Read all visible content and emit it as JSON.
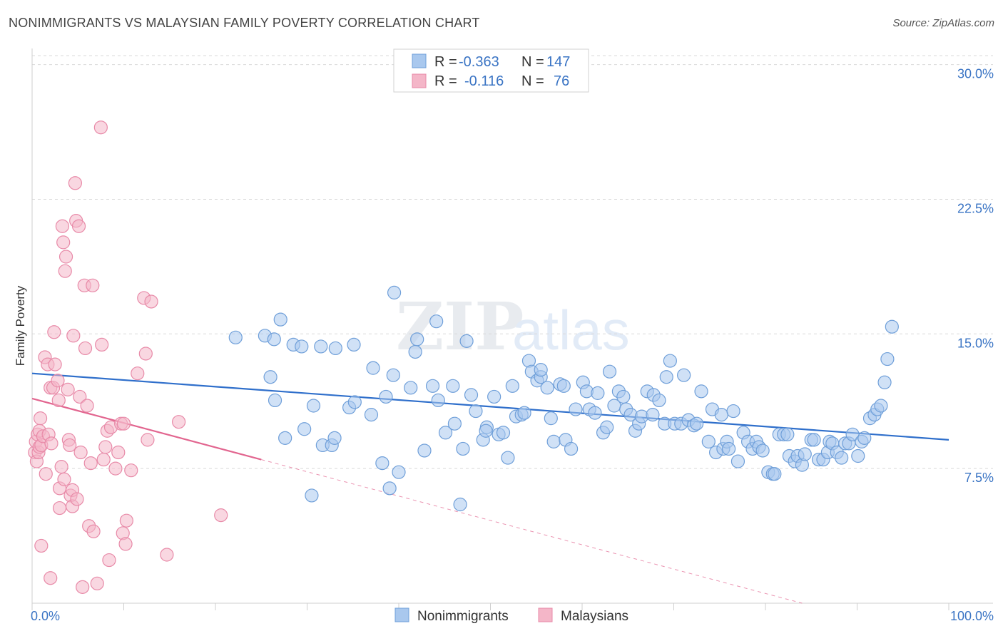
{
  "title": "NONIMMIGRANTS VS MALAYSIAN FAMILY POVERTY CORRELATION CHART",
  "source": "Source: ZipAtlas.com",
  "watermark": {
    "zip": "ZIP",
    "atlas": "atlas"
  },
  "colors": {
    "blue_fill": "#a9c8ee",
    "blue_stroke": "#6f9fd9",
    "blue_line": "#2f6fcb",
    "pink_fill": "#f4b6c8",
    "pink_stroke": "#e88aa8",
    "pink_line": "#e2658f",
    "grid": "#d9d9d9",
    "axis_text": "#3a74c4"
  },
  "legend": {
    "rows": [
      {
        "r_label": "R =",
        "r_value": "-0.363",
        "n_label": "N =",
        "n_value": "147"
      },
      {
        "r_label": "R =",
        "r_value": "-0.116",
        "n_label": "N =",
        "n_value": "76"
      }
    ]
  },
  "bottom_legend": [
    "Nonimmigrants",
    "Malaysians"
  ],
  "chart_data": {
    "type": "scatter",
    "title": "NONIMMIGRANTS VS MALAYSIAN FAMILY POVERTY CORRELATION CHART",
    "xlabel": "",
    "ylabel": "Family Poverty",
    "xlim": [
      0,
      100
    ],
    "ylim": [
      0,
      30.5
    ],
    "x_tick_labels": [
      "0.0%",
      "100.0%"
    ],
    "y_ticks": [
      7.5,
      15.0,
      22.5,
      30.0
    ],
    "y_tick_labels": [
      "7.5%",
      "15.0%",
      "22.5%",
      "30.0%"
    ],
    "grid": "horizontal dashed",
    "legend_position": "top-center",
    "series": [
      {
        "name": "Nonimmigrants",
        "r": -0.363,
        "n": 147,
        "trend": {
          "x": [
            0,
            100
          ],
          "y": [
            12.8,
            9.1
          ]
        },
        "points": [
          [
            22.2,
            14.8
          ],
          [
            25.4,
            14.9
          ],
          [
            26.0,
            12.6
          ],
          [
            26.4,
            14.7
          ],
          [
            26.5,
            11.3
          ],
          [
            27.1,
            15.8
          ],
          [
            27.6,
            9.2
          ],
          [
            28.5,
            14.4
          ],
          [
            29.4,
            14.3
          ],
          [
            29.7,
            9.7
          ],
          [
            30.5,
            6.0
          ],
          [
            30.7,
            11.0
          ],
          [
            31.5,
            14.3
          ],
          [
            33.1,
            14.2
          ],
          [
            31.7,
            8.8
          ],
          [
            32.7,
            8.8
          ],
          [
            33.0,
            9.2
          ],
          [
            35.1,
            14.4
          ],
          [
            34.6,
            10.9
          ],
          [
            35.2,
            11.2
          ],
          [
            37.0,
            10.5
          ],
          [
            37.2,
            13.1
          ],
          [
            38.2,
            7.8
          ],
          [
            38.6,
            11.5
          ],
          [
            39.5,
            17.3
          ],
          [
            39.0,
            6.4
          ],
          [
            39.4,
            12.7
          ],
          [
            40.0,
            7.3
          ],
          [
            41.3,
            12.0
          ],
          [
            41.8,
            14.0
          ],
          [
            42.0,
            14.7
          ],
          [
            42.8,
            8.5
          ],
          [
            43.7,
            12.1
          ],
          [
            44.1,
            15.7
          ],
          [
            44.3,
            11.3
          ],
          [
            45.1,
            9.5
          ],
          [
            45.9,
            12.1
          ],
          [
            46.1,
            10.0
          ],
          [
            46.7,
            5.5
          ],
          [
            47.0,
            8.6
          ],
          [
            47.4,
            14.6
          ],
          [
            47.9,
            11.6
          ],
          [
            48.4,
            10.7
          ],
          [
            49.2,
            9.1
          ],
          [
            49.6,
            9.8
          ],
          [
            49.5,
            9.6
          ],
          [
            50.4,
            11.5
          ],
          [
            50.9,
            9.4
          ],
          [
            51.4,
            9.5
          ],
          [
            51.9,
            8.1
          ],
          [
            52.4,
            12.1
          ],
          [
            52.8,
            10.4
          ],
          [
            53.4,
            10.5
          ],
          [
            53.7,
            10.6
          ],
          [
            54.2,
            13.5
          ],
          [
            54.5,
            12.9
          ],
          [
            55.1,
            12.4
          ],
          [
            55.5,
            12.6
          ],
          [
            55.5,
            13.0
          ],
          [
            56.2,
            12.0
          ],
          [
            56.6,
            10.3
          ],
          [
            56.9,
            9.0
          ],
          [
            57.6,
            12.2
          ],
          [
            58.0,
            12.1
          ],
          [
            58.2,
            9.1
          ],
          [
            58.8,
            8.6
          ],
          [
            59.3,
            10.8
          ],
          [
            60.1,
            12.3
          ],
          [
            60.5,
            11.8
          ],
          [
            60.8,
            10.8
          ],
          [
            61.4,
            10.6
          ],
          [
            61.7,
            11.7
          ],
          [
            62.3,
            9.5
          ],
          [
            62.7,
            9.8
          ],
          [
            63.0,
            12.9
          ],
          [
            63.5,
            11.0
          ],
          [
            64.0,
            11.8
          ],
          [
            64.5,
            11.5
          ],
          [
            64.8,
            10.8
          ],
          [
            65.3,
            10.5
          ],
          [
            65.8,
            9.6
          ],
          [
            66.2,
            10.0
          ],
          [
            66.5,
            10.4
          ],
          [
            67.1,
            11.8
          ],
          [
            67.7,
            10.5
          ],
          [
            67.8,
            11.6
          ],
          [
            68.4,
            11.3
          ],
          [
            69.0,
            10.0
          ],
          [
            69.2,
            12.6
          ],
          [
            69.6,
            13.5
          ],
          [
            70.1,
            10.0
          ],
          [
            70.8,
            10.0
          ],
          [
            71.1,
            12.7
          ],
          [
            71.6,
            10.2
          ],
          [
            72.2,
            9.9
          ],
          [
            72.5,
            10.0
          ],
          [
            73.0,
            11.8
          ],
          [
            73.8,
            9.0
          ],
          [
            74.2,
            10.8
          ],
          [
            74.6,
            8.4
          ],
          [
            75.2,
            10.5
          ],
          [
            75.4,
            8.6
          ],
          [
            75.8,
            9.0
          ],
          [
            76.0,
            8.6
          ],
          [
            76.5,
            10.7
          ],
          [
            77.0,
            7.9
          ],
          [
            77.6,
            9.5
          ],
          [
            78.1,
            9.0
          ],
          [
            78.6,
            8.6
          ],
          [
            79.0,
            9.0
          ],
          [
            79.3,
            8.7
          ],
          [
            79.7,
            8.5
          ],
          [
            80.3,
            7.3
          ],
          [
            80.8,
            7.2
          ],
          [
            81.0,
            7.2
          ],
          [
            81.5,
            9.4
          ],
          [
            82.0,
            9.4
          ],
          [
            82.4,
            9.4
          ],
          [
            82.6,
            8.2
          ],
          [
            83.2,
            7.9
          ],
          [
            83.5,
            8.2
          ],
          [
            84.0,
            7.7
          ],
          [
            84.3,
            8.3
          ],
          [
            85.0,
            9.1
          ],
          [
            85.3,
            9.1
          ],
          [
            85.8,
            8.0
          ],
          [
            86.3,
            8.0
          ],
          [
            86.8,
            8.4
          ],
          [
            87.0,
            9.0
          ],
          [
            87.3,
            8.9
          ],
          [
            87.8,
            8.4
          ],
          [
            88.3,
            8.1
          ],
          [
            88.7,
            8.9
          ],
          [
            89.1,
            8.9
          ],
          [
            89.5,
            9.4
          ],
          [
            90.1,
            8.2
          ],
          [
            90.5,
            9.0
          ],
          [
            90.8,
            9.2
          ],
          [
            91.4,
            10.3
          ],
          [
            91.9,
            10.5
          ],
          [
            92.2,
            10.8
          ],
          [
            92.6,
            11.0
          ],
          [
            93.0,
            12.3
          ],
          [
            93.3,
            13.6
          ],
          [
            93.8,
            15.4
          ]
        ]
      },
      {
        "name": "Malaysians",
        "r": -0.116,
        "n": 76,
        "trend": {
          "x": [
            0,
            25
          ],
          "y": [
            11.4,
            8.0
          ]
        },
        "trend_extension": {
          "x": [
            25,
            84
          ],
          "y": [
            8.0,
            0
          ]
        },
        "points": [
          [
            0.3,
            8.4
          ],
          [
            0.4,
            9.0
          ],
          [
            0.5,
            7.9
          ],
          [
            0.6,
            9.4
          ],
          [
            0.7,
            8.4
          ],
          [
            0.8,
            9.6
          ],
          [
            0.8,
            8.7
          ],
          [
            0.9,
            10.3
          ],
          [
            1.0,
            8.8
          ],
          [
            1.2,
            9.3
          ],
          [
            1.4,
            13.7
          ],
          [
            1.5,
            7.2
          ],
          [
            1.7,
            13.3
          ],
          [
            1.8,
            9.4
          ],
          [
            2.0,
            12.0
          ],
          [
            2.1,
            8.9
          ],
          [
            2.3,
            12.0
          ],
          [
            2.4,
            15.1
          ],
          [
            2.5,
            13.3
          ],
          [
            2.8,
            12.4
          ],
          [
            2.9,
            11.3
          ],
          [
            3.0,
            6.4
          ],
          [
            3.2,
            7.6
          ],
          [
            3.3,
            21.0
          ],
          [
            3.4,
            20.1
          ],
          [
            3.5,
            6.9
          ],
          [
            3.6,
            18.5
          ],
          [
            3.7,
            19.3
          ],
          [
            3.9,
            11.9
          ],
          [
            4.0,
            9.1
          ],
          [
            4.1,
            8.8
          ],
          [
            4.2,
            6.0
          ],
          [
            4.4,
            6.3
          ],
          [
            4.4,
            5.4
          ],
          [
            4.5,
            14.9
          ],
          [
            4.7,
            23.4
          ],
          [
            4.8,
            21.3
          ],
          [
            4.9,
            5.8
          ],
          [
            5.1,
            21.0
          ],
          [
            5.2,
            11.5
          ],
          [
            5.3,
            8.4
          ],
          [
            5.5,
            0.9
          ],
          [
            5.7,
            17.7
          ],
          [
            5.8,
            14.2
          ],
          [
            6.0,
            11.0
          ],
          [
            6.2,
            4.3
          ],
          [
            6.4,
            7.8
          ],
          [
            6.6,
            17.7
          ],
          [
            6.7,
            4.0
          ],
          [
            7.1,
            1.1
          ],
          [
            7.5,
            26.5
          ],
          [
            7.6,
            14.4
          ],
          [
            7.8,
            8.0
          ],
          [
            8.0,
            8.7
          ],
          [
            8.2,
            9.6
          ],
          [
            8.4,
            2.4
          ],
          [
            8.6,
            9.8
          ],
          [
            9.1,
            7.5
          ],
          [
            9.4,
            8.4
          ],
          [
            9.7,
            10.0
          ],
          [
            9.9,
            3.9
          ],
          [
            10.0,
            10.0
          ],
          [
            10.2,
            3.3
          ],
          [
            10.3,
            4.6
          ],
          [
            10.8,
            7.4
          ],
          [
            11.5,
            12.8
          ],
          [
            12.2,
            17.0
          ],
          [
            12.4,
            13.9
          ],
          [
            12.6,
            9.1
          ],
          [
            13.0,
            16.8
          ],
          [
            14.7,
            2.7
          ],
          [
            16.0,
            10.1
          ],
          [
            20.6,
            4.9
          ],
          [
            1.0,
            3.2
          ],
          [
            3.0,
            5.3
          ],
          [
            2.0,
            1.4
          ]
        ]
      }
    ]
  }
}
